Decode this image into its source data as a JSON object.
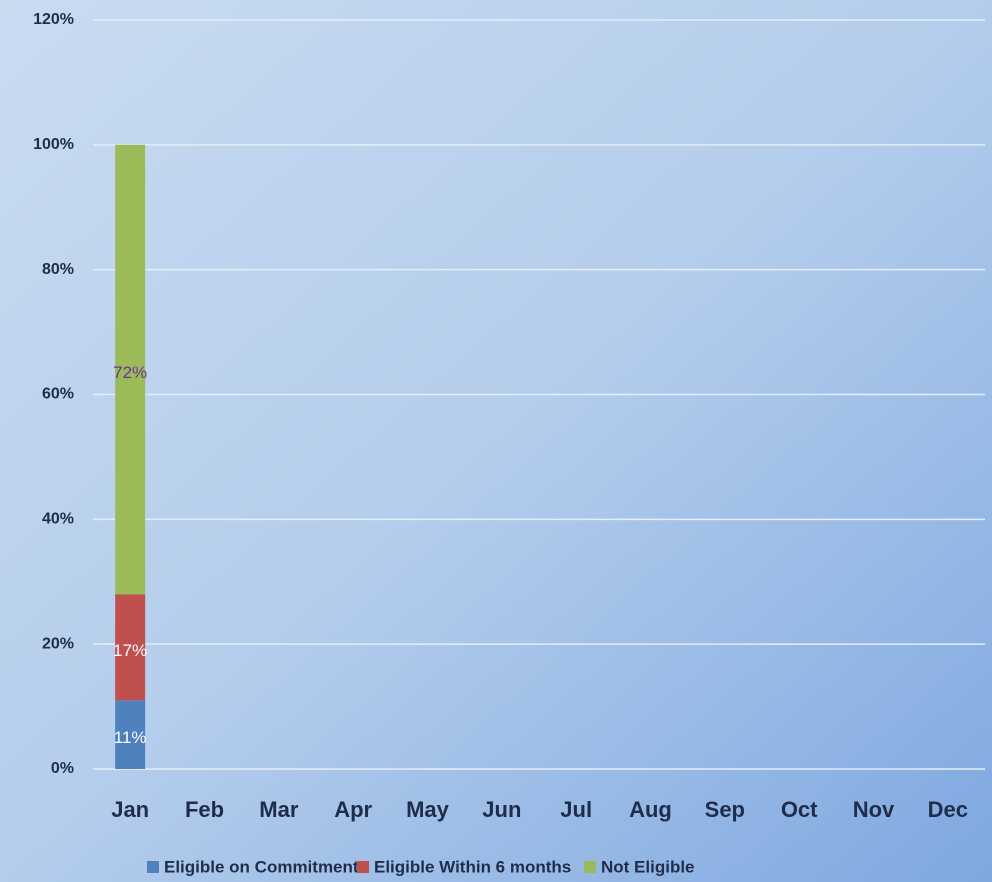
{
  "chart_data": {
    "type": "stacked_bar",
    "categories": [
      "Jan",
      "Feb",
      "Mar",
      "Apr",
      "May",
      "Jun",
      "Jul",
      "Aug",
      "Sep",
      "Oct",
      "Nov",
      "Dec"
    ],
    "series": [
      {
        "name": "Eligible on Commitment",
        "color": "#4f81bd",
        "label_color": "#ffffff",
        "values": [
          11,
          null,
          null,
          null,
          null,
          null,
          null,
          null,
          null,
          null,
          null,
          null
        ],
        "value_labels": [
          "11%",
          null,
          null,
          null,
          null,
          null,
          null,
          null,
          null,
          null,
          null,
          null
        ]
      },
      {
        "name": "Eligible Within 6 months",
        "color": "#c0504d",
        "label_color": "#ffffff",
        "values": [
          17,
          null,
          null,
          null,
          null,
          null,
          null,
          null,
          null,
          null,
          null,
          null
        ],
        "value_labels": [
          "17%",
          null,
          null,
          null,
          null,
          null,
          null,
          null,
          null,
          null,
          null,
          null
        ]
      },
      {
        "name": "Not Eligible",
        "color": "#9bbb59",
        "label_color": "#7030a0",
        "values": [
          72,
          null,
          null,
          null,
          null,
          null,
          null,
          null,
          null,
          null,
          null,
          null
        ],
        "value_labels": [
          "72%",
          null,
          null,
          null,
          null,
          null,
          null,
          null,
          null,
          null,
          null,
          null
        ]
      }
    ],
    "ylim": [
      0,
      120
    ],
    "yticks": [
      {
        "value": 0,
        "label": "0%"
      },
      {
        "value": 20,
        "label": "20%"
      },
      {
        "value": 40,
        "label": "40%"
      },
      {
        "value": 60,
        "label": "60%"
      },
      {
        "value": 80,
        "label": "80%"
      },
      {
        "value": 100,
        "label": "100%"
      },
      {
        "value": 120,
        "label": "120%"
      }
    ],
    "grid": true,
    "legend": "bottom"
  }
}
